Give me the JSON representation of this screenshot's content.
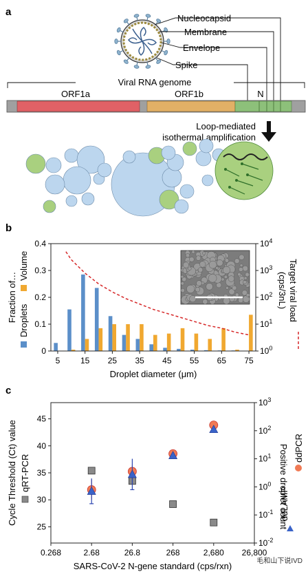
{
  "panels": {
    "a": {
      "letter": "a",
      "virus_labels": {
        "nucleocapsid": "Nucleocapsid",
        "membrane": "Membrane",
        "envelope": "Envelope",
        "spike": "Spike"
      },
      "genome_label": "Viral RNA genome",
      "genes": {
        "orf1a": "ORF1a",
        "orf1b": "ORF1b",
        "n": "N"
      },
      "arrow_text_1": "Loop-mediated",
      "arrow_text_2": "isothermal amplification",
      "colors": {
        "orf1a": "#e06166",
        "orf1b": "#e2b066",
        "n_gene": "#8dc07a",
        "droplet_blue": "#bcd6ee",
        "droplet_green": "#a9d07f"
      }
    },
    "b": {
      "letter": "b"
    },
    "c": {
      "letter": "c"
    }
  },
  "watermark": "毛和山下说IVD",
  "chart_data": [
    {
      "type": "bar",
      "xlabel": "Droplet diameter (μm)",
      "ylabel_left_1": "Fraction of…",
      "legend": [
        {
          "name": "Droplets",
          "color": "#5b8fc9"
        },
        {
          "name": "Volume",
          "color": "#f0a830"
        }
      ],
      "ylabel_right": "Target viral load",
      "ylabel_right_unit": "(cps/3nL)",
      "x_ticks": [
        "5",
        "15",
        "25",
        "35",
        "45",
        "55",
        "65",
        "75"
      ],
      "y_ticks": [
        "0",
        "0.1",
        "0.2",
        "0.3",
        "0.4"
      ],
      "y2_ticks": [
        "10",
        "10",
        "10",
        "10",
        "10"
      ],
      "y2_exps": [
        "0",
        "1",
        "2",
        "3",
        "4"
      ],
      "ylim": [
        0,
        0.4
      ],
      "y2lim_log10": [
        0,
        4
      ],
      "x_centers": [
        5,
        10,
        15,
        20,
        25,
        30,
        35,
        40,
        45,
        50,
        55,
        60,
        65,
        70,
        75
      ],
      "series": [
        {
          "name": "Droplets",
          "values": [
            0.03,
            0.155,
            0.285,
            0.235,
            0.13,
            0.06,
            0.045,
            0.025,
            0.012,
            0.008,
            0.005,
            0.003,
            0.002,
            0.002,
            0.0
          ]
        },
        {
          "name": "Volume",
          "values": [
            0.0,
            0.005,
            0.045,
            0.085,
            0.1,
            0.1,
            0.1,
            0.06,
            0.065,
            0.085,
            0.065,
            0.045,
            0.085,
            0.005,
            0.135
          ]
        }
      ],
      "curve": {
        "name": "Target viral load",
        "color": "#d62728",
        "style": "dashed",
        "x": [
          8,
          10,
          15,
          20,
          25,
          30,
          35,
          40,
          45,
          50,
          55,
          60,
          65,
          70,
          75
        ],
        "y_log10": [
          3.7,
          3.4,
          2.9,
          2.5,
          2.2,
          1.95,
          1.75,
          1.55,
          1.4,
          1.25,
          1.1,
          0.95,
          0.85,
          0.7,
          0.6
        ]
      }
    },
    {
      "type": "scatter",
      "xlabel": "SARS-CoV-2 N-gene standard (cps/rxn)",
      "ylabel_left": "Cycle Threshold (Ct) value",
      "ylabel_left_series": "qRT-PCR",
      "ylabel_right": "Positive droplet count",
      "ylabel_right_series_1": "ddLAMP",
      "ylabel_right_series_2": "ddPCR",
      "x_ticks": [
        "0.268",
        "2.68",
        "26.8",
        "268",
        "2,680",
        "26,800"
      ],
      "y_ticks": [
        "25",
        "30",
        "35",
        "40",
        "45"
      ],
      "y2_ticks": [
        "10",
        "10",
        "10",
        "10",
        "10",
        "10"
      ],
      "y2_exps": [
        "-2",
        "-1",
        "0",
        "1",
        "2",
        "3"
      ],
      "ylim": [
        22,
        48
      ],
      "y2lim_log10": [
        -2,
        3
      ],
      "series": [
        {
          "name": "qRT-PCR",
          "marker": "square",
          "color": "#8a8a8a",
          "x_log10": [
            0.428,
            1.428,
            2.428,
            3.428
          ],
          "y": [
            35.4,
            33.5,
            29.2,
            25.8
          ]
        },
        {
          "name": "ddLAMP",
          "marker": "triangle",
          "color": "#3a63c8",
          "x_log10": [
            0.428,
            1.428,
            2.428,
            3.428
          ],
          "y_log10": [
            -0.15,
            0.45,
            1.12,
            2.05
          ],
          "err_log10": [
            0.45,
            0.55,
            0.1,
            0.05
          ]
        },
        {
          "name": "ddPCR",
          "marker": "circle",
          "color": "#f07a55",
          "x_log10": [
            0.428,
            1.428,
            2.428,
            3.428
          ],
          "y_log10": [
            -0.1,
            0.55,
            1.18,
            2.2
          ],
          "err_log10": [
            0.35,
            0.25,
            0.1,
            0.05
          ]
        }
      ]
    }
  ]
}
